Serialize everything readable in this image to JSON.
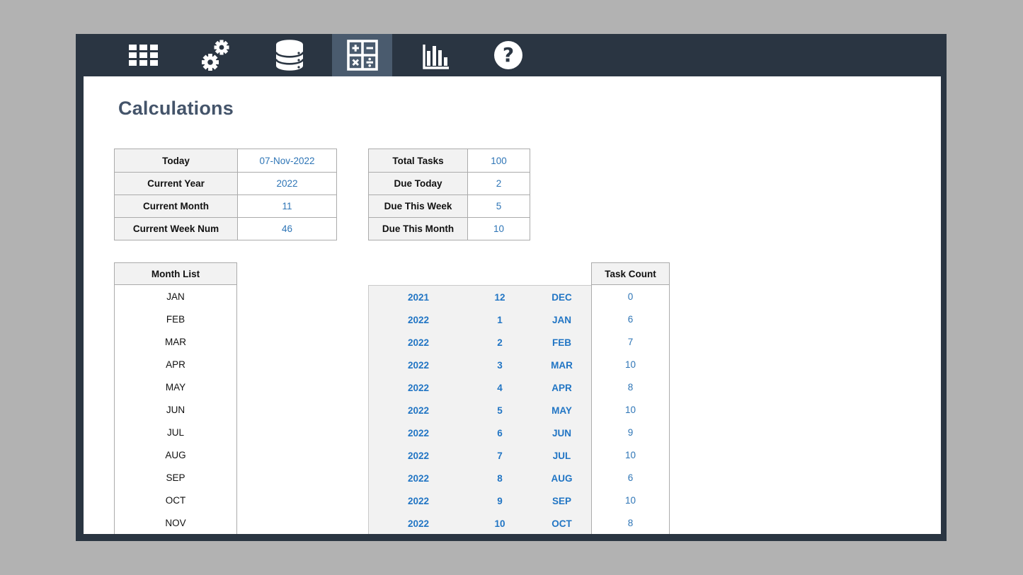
{
  "app": {
    "accent_blue": "#2e75b6",
    "title_color": "#44546a",
    "navbar_color": "#2a3542",
    "active_tab_color": "#4a5b6e"
  },
  "navbar": {
    "tabs": [
      {
        "id": "grid",
        "icon": "grid-icon",
        "active": false
      },
      {
        "id": "settings",
        "icon": "gears-icon",
        "active": false
      },
      {
        "id": "database",
        "icon": "database-icon",
        "active": false
      },
      {
        "id": "calculator",
        "icon": "calculator-icon",
        "active": true
      },
      {
        "id": "charts",
        "icon": "bar-chart-icon",
        "active": false
      },
      {
        "id": "help",
        "icon": "question-mark-icon",
        "active": false
      }
    ]
  },
  "page_title": "Calculations",
  "date_info": {
    "rows": [
      {
        "label": "Today",
        "value": "07-Nov-2022"
      },
      {
        "label": "Current Year",
        "value": "2022"
      },
      {
        "label": "Current Month",
        "value": "11"
      },
      {
        "label": "Current Week Num",
        "value": "46"
      }
    ]
  },
  "task_summary": {
    "rows": [
      {
        "label": "Total Tasks",
        "value": "100"
      },
      {
        "label": "Due Today",
        "value": "2"
      },
      {
        "label": "Due This Week",
        "value": "5"
      },
      {
        "label": "Due This Month",
        "value": "10"
      }
    ]
  },
  "month_list": {
    "header": "Month List",
    "months": [
      {
        "name": "JAN"
      },
      {
        "name": "FEB"
      },
      {
        "name": "MAR"
      },
      {
        "name": "APR"
      },
      {
        "name": "MAY"
      },
      {
        "name": "JUN"
      },
      {
        "name": "JUL"
      },
      {
        "name": "AUG"
      },
      {
        "name": "SEP"
      },
      {
        "name": "OCT"
      },
      {
        "name": "NOV"
      }
    ]
  },
  "monthly_breakdown": {
    "task_count_header": "Task Count",
    "rows": [
      {
        "year": "2021",
        "month_num": "12",
        "month": "DEC",
        "count": "0"
      },
      {
        "year": "2022",
        "month_num": "1",
        "month": "JAN",
        "count": "6"
      },
      {
        "year": "2022",
        "month_num": "2",
        "month": "FEB",
        "count": "7"
      },
      {
        "year": "2022",
        "month_num": "3",
        "month": "MAR",
        "count": "10"
      },
      {
        "year": "2022",
        "month_num": "4",
        "month": "APR",
        "count": "8"
      },
      {
        "year": "2022",
        "month_num": "5",
        "month": "MAY",
        "count": "10"
      },
      {
        "year": "2022",
        "month_num": "6",
        "month": "JUN",
        "count": "9"
      },
      {
        "year": "2022",
        "month_num": "7",
        "month": "JUL",
        "count": "10"
      },
      {
        "year": "2022",
        "month_num": "8",
        "month": "AUG",
        "count": "6"
      },
      {
        "year": "2022",
        "month_num": "9",
        "month": "SEP",
        "count": "10"
      },
      {
        "year": "2022",
        "month_num": "10",
        "month": "OCT",
        "count": "8"
      }
    ]
  }
}
